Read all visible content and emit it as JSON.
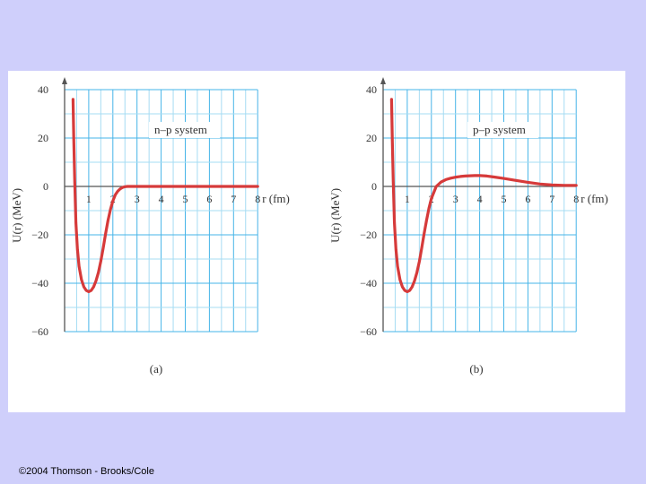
{
  "chart_data": [
    {
      "type": "line",
      "panel_label": "(a)",
      "annotation": "n–p system",
      "xlabel": "r (fm)",
      "ylabel": "U(r) (MeV)",
      "x_ticks": [
        "1",
        "2",
        "3",
        "4",
        "5",
        "6",
        "7",
        "8"
      ],
      "y_ticks": [
        "40",
        "20",
        "0",
        "−20",
        "−40",
        "−60"
      ],
      "xlim": [
        0,
        8.4
      ],
      "ylim": [
        -60,
        40
      ],
      "grid": true,
      "line_color": "#d63a3a",
      "series": [
        {
          "x": [
            0.35,
            0.38,
            0.42,
            0.47,
            0.53,
            0.6,
            0.7,
            0.8,
            0.9,
            1.0,
            1.1,
            1.2,
            1.3,
            1.4,
            1.5,
            1.6,
            1.7,
            1.8,
            1.9,
            2.0,
            2.1,
            2.2,
            2.3,
            2.4,
            2.5,
            2.6,
            2.7,
            2.8,
            2.9,
            3.0,
            4.0,
            5.0,
            6.0,
            7.0,
            8.0
          ],
          "y": [
            36,
            20,
            2,
            -15,
            -26,
            -33,
            -38.5,
            -41.5,
            -43,
            -43.5,
            -43,
            -41.5,
            -39,
            -35.5,
            -31,
            -25.5,
            -19.5,
            -14,
            -9.5,
            -6,
            -3.5,
            -2,
            -1,
            -0.4,
            -0.1,
            0,
            0,
            0,
            0,
            0,
            0,
            0,
            0,
            0,
            0
          ]
        }
      ]
    },
    {
      "type": "line",
      "panel_label": "(b)",
      "annotation": "p–p system",
      "xlabel": "r (fm)",
      "ylabel": "U(r) (MeV)",
      "x_ticks": [
        "1",
        "2",
        "3",
        "4",
        "5",
        "6",
        "7",
        "8"
      ],
      "y_ticks": [
        "40",
        "20",
        "0",
        "−20",
        "−40",
        "−60"
      ],
      "xlim": [
        0,
        8.4
      ],
      "ylim": [
        -60,
        40
      ],
      "grid": true,
      "line_color": "#d63a3a",
      "series": [
        {
          "x": [
            0.35,
            0.38,
            0.42,
            0.47,
            0.53,
            0.6,
            0.7,
            0.8,
            0.9,
            1.0,
            1.1,
            1.2,
            1.3,
            1.4,
            1.5,
            1.6,
            1.7,
            1.8,
            1.9,
            2.0,
            2.2,
            2.4,
            2.6,
            2.8,
            3.0,
            3.2,
            3.4,
            3.6,
            3.8,
            4.0,
            4.3,
            4.6,
            5.0,
            5.5,
            6.0,
            6.5,
            7.0,
            7.5,
            8.0
          ],
          "y": [
            36,
            20,
            2,
            -15,
            -26,
            -33,
            -38.5,
            -41.5,
            -43,
            -43.5,
            -43,
            -41.5,
            -39,
            -35.5,
            -31,
            -25.5,
            -19.5,
            -14,
            -9,
            -5,
            0,
            1.8,
            2.8,
            3.4,
            3.8,
            4.1,
            4.3,
            4.4,
            4.5,
            4.5,
            4.3,
            3.9,
            3.3,
            2.5,
            1.7,
            1.0,
            0.6,
            0.4,
            0.4
          ]
        }
      ]
    }
  ],
  "footer": {
    "copyright": "©2004 Thomson - Brooks/Cole"
  }
}
